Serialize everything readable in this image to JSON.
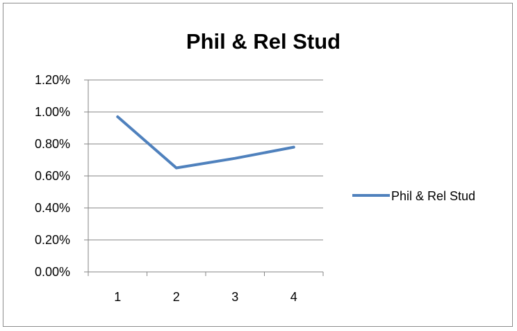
{
  "chart_data": {
    "type": "line",
    "title": "Phil & Rel Stud",
    "xlabel": "",
    "ylabel": "",
    "categories": [
      "1",
      "2",
      "3",
      "4"
    ],
    "series": [
      {
        "name": "Phil & Rel Stud",
        "values": [
          0.0097,
          0.0065,
          0.0071,
          0.0078
        ],
        "color": "#4f81bd"
      }
    ],
    "y_ticks": [
      "0.00%",
      "0.20%",
      "0.40%",
      "0.60%",
      "0.80%",
      "1.00%",
      "1.20%"
    ],
    "ylim": [
      0,
      0.012
    ],
    "grid": true,
    "legend": "right"
  }
}
